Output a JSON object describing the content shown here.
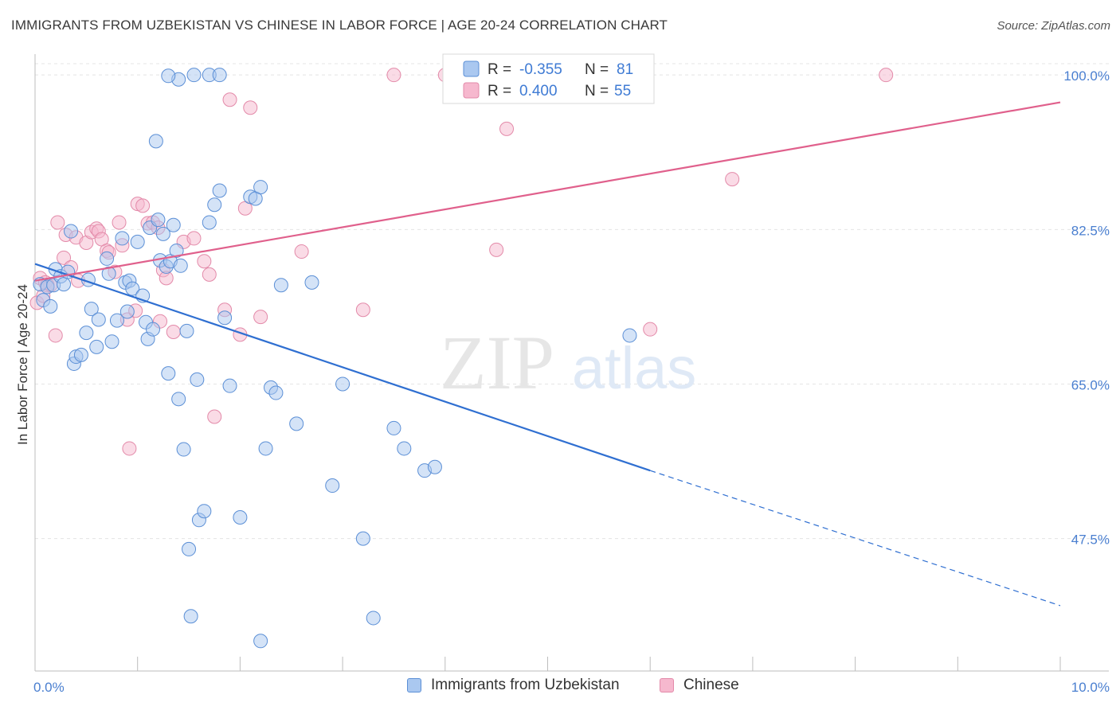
{
  "title": "IMMIGRANTS FROM UZBEKISTAN VS CHINESE IN LABOR FORCE | AGE 20-24 CORRELATION CHART",
  "source": "Source: ZipAtlas.com",
  "watermark": {
    "zip": "ZIP",
    "atlas": "atlas"
  },
  "legend_box": {
    "rows": [
      {
        "r_label": "R = ",
        "r_value": "-0.355",
        "n_label": "N = ",
        "n_value": "81"
      },
      {
        "r_label": "R = ",
        "r_value": "0.400",
        "n_label": "N = ",
        "n_value": "55"
      }
    ]
  },
  "bottom_legend": [
    "Immigrants from Uzbekistan",
    "Chinese"
  ],
  "colors": {
    "blue_fill": "#aac8f0",
    "blue_stroke": "#5b8fd6",
    "blue_line": "#2f6fd1",
    "pink_fill": "#f6b8ce",
    "pink_stroke": "#e38aa9",
    "pink_line": "#e0608c",
    "axis_text": "#4a7fd0",
    "grid": "#e4e4e4"
  },
  "chart_data": {
    "type": "scatter",
    "xlabel": "",
    "ylabel": "In Labor Force | Age 20-24",
    "xlim": [
      0,
      10
    ],
    "ylim": [
      32.5,
      102
    ],
    "x_tick_labels": [
      {
        "value": 0,
        "label": "0.0%"
      },
      {
        "value": 10,
        "label": "10.0%"
      }
    ],
    "y_tick_labels": [
      {
        "value": 100,
        "label": "100.0%"
      },
      {
        "value": 82.5,
        "label": "82.5%"
      },
      {
        "value": 65,
        "label": "65.0%"
      },
      {
        "value": 47.5,
        "label": "47.5%"
      }
    ],
    "grid": true,
    "legend": "top-center",
    "series": [
      {
        "name": "Immigrants from Uzbekistan",
        "color": "blue",
        "stats": {
          "R": -0.355,
          "N": 81
        },
        "points": [
          [
            0.05,
            76.3
          ],
          [
            0.08,
            74.5
          ],
          [
            0.12,
            76.0
          ],
          [
            0.15,
            73.8
          ],
          [
            0.18,
            76.2
          ],
          [
            0.2,
            78.0
          ],
          [
            0.25,
            77.2
          ],
          [
            0.28,
            76.3
          ],
          [
            0.32,
            77.7
          ],
          [
            0.35,
            82.3
          ],
          [
            0.38,
            67.3
          ],
          [
            0.4,
            68.1
          ],
          [
            0.45,
            68.3
          ],
          [
            0.5,
            70.8
          ],
          [
            0.52,
            76.8
          ],
          [
            0.55,
            73.5
          ],
          [
            0.6,
            69.2
          ],
          [
            0.62,
            72.3
          ],
          [
            0.7,
            79.2
          ],
          [
            0.72,
            77.5
          ],
          [
            0.75,
            69.8
          ],
          [
            0.8,
            72.2
          ],
          [
            0.85,
            81.5
          ],
          [
            0.88,
            76.5
          ],
          [
            0.9,
            73.2
          ],
          [
            0.92,
            76.7
          ],
          [
            0.95,
            75.8
          ],
          [
            1.0,
            81.1
          ],
          [
            1.05,
            75.0
          ],
          [
            1.08,
            72.0
          ],
          [
            1.1,
            70.1
          ],
          [
            1.12,
            82.7
          ],
          [
            1.15,
            71.2
          ],
          [
            1.18,
            92.5
          ],
          [
            1.2,
            83.6
          ],
          [
            1.22,
            79.0
          ],
          [
            1.25,
            82.0
          ],
          [
            1.28,
            78.3
          ],
          [
            1.3,
            66.2
          ],
          [
            1.32,
            78.9
          ],
          [
            1.35,
            83.0
          ],
          [
            1.38,
            80.1
          ],
          [
            1.4,
            63.3
          ],
          [
            1.42,
            78.4
          ],
          [
            1.45,
            57.6
          ],
          [
            1.48,
            71.0
          ],
          [
            1.5,
            46.3
          ],
          [
            1.52,
            38.7
          ],
          [
            1.58,
            65.5
          ],
          [
            1.6,
            49.6
          ],
          [
            1.65,
            50.6
          ],
          [
            1.7,
            83.3
          ],
          [
            1.75,
            85.3
          ],
          [
            1.8,
            86.9
          ],
          [
            1.85,
            72.5
          ],
          [
            1.9,
            64.8
          ],
          [
            2.0,
            49.9
          ],
          [
            2.1,
            86.2
          ],
          [
            2.15,
            86.0
          ],
          [
            2.2,
            87.3
          ],
          [
            2.25,
            57.7
          ],
          [
            2.3,
            64.6
          ],
          [
            2.35,
            64.0
          ],
          [
            2.4,
            76.2
          ],
          [
            2.55,
            60.5
          ],
          [
            2.7,
            76.5
          ],
          [
            2.9,
            53.5
          ],
          [
            3.0,
            65.0
          ],
          [
            3.2,
            47.5
          ],
          [
            3.3,
            38.5
          ],
          [
            3.5,
            60.0
          ],
          [
            3.6,
            57.7
          ],
          [
            3.8,
            55.2
          ],
          [
            3.9,
            55.6
          ],
          [
            5.8,
            70.5
          ],
          [
            2.2,
            35.9
          ],
          [
            1.4,
            99.5
          ],
          [
            1.55,
            100.0
          ],
          [
            1.7,
            100.0
          ],
          [
            1.8,
            100.0
          ],
          [
            1.3,
            99.9
          ]
        ],
        "trend": {
          "x0": 0,
          "y0": 78.6,
          "x1": 6.0,
          "y1": 55.2,
          "dashed_to": [
            10.0,
            39.9
          ]
        }
      },
      {
        "name": "Chinese",
        "color": "pink",
        "stats": {
          "R": 0.4,
          "N": 55
        },
        "points": [
          [
            0.02,
            74.2
          ],
          [
            0.05,
            77.0
          ],
          [
            0.1,
            76.5
          ],
          [
            0.15,
            76.2
          ],
          [
            0.2,
            70.5
          ],
          [
            0.22,
            83.3
          ],
          [
            0.28,
            79.3
          ],
          [
            0.3,
            81.9
          ],
          [
            0.35,
            78.2
          ],
          [
            0.4,
            81.6
          ],
          [
            0.42,
            76.7
          ],
          [
            0.5,
            81.0
          ],
          [
            0.55,
            82.2
          ],
          [
            0.6,
            82.6
          ],
          [
            0.62,
            82.3
          ],
          [
            0.65,
            81.4
          ],
          [
            0.7,
            80.1
          ],
          [
            0.72,
            79.9
          ],
          [
            0.78,
            77.7
          ],
          [
            0.82,
            83.3
          ],
          [
            0.85,
            80.7
          ],
          [
            0.9,
            72.3
          ],
          [
            0.92,
            57.7
          ],
          [
            0.98,
            73.3
          ],
          [
            1.0,
            85.4
          ],
          [
            1.05,
            85.2
          ],
          [
            1.1,
            83.2
          ],
          [
            1.15,
            83.3
          ],
          [
            1.2,
            82.7
          ],
          [
            1.22,
            72.1
          ],
          [
            1.25,
            77.9
          ],
          [
            1.28,
            77.0
          ],
          [
            1.35,
            70.9
          ],
          [
            1.45,
            81.1
          ],
          [
            1.55,
            81.5
          ],
          [
            1.65,
            78.9
          ],
          [
            1.7,
            77.4
          ],
          [
            1.75,
            61.3
          ],
          [
            1.85,
            73.4
          ],
          [
            1.9,
            97.2
          ],
          [
            2.0,
            70.6
          ],
          [
            2.05,
            84.9
          ],
          [
            2.1,
            96.3
          ],
          [
            2.2,
            72.6
          ],
          [
            2.6,
            80.0
          ],
          [
            3.2,
            73.4
          ],
          [
            3.5,
            100.0
          ],
          [
            4.0,
            100.0
          ],
          [
            4.5,
            80.2
          ],
          [
            4.6,
            93.9
          ],
          [
            6.0,
            71.2
          ],
          [
            6.8,
            88.2
          ],
          [
            8.3,
            100.0
          ],
          [
            0.12,
            76.2
          ],
          [
            0.08,
            75.0
          ]
        ],
        "trend": {
          "x0": 0,
          "y0": 76.7,
          "x1": 10.0,
          "y1": 96.9
        }
      }
    ]
  }
}
